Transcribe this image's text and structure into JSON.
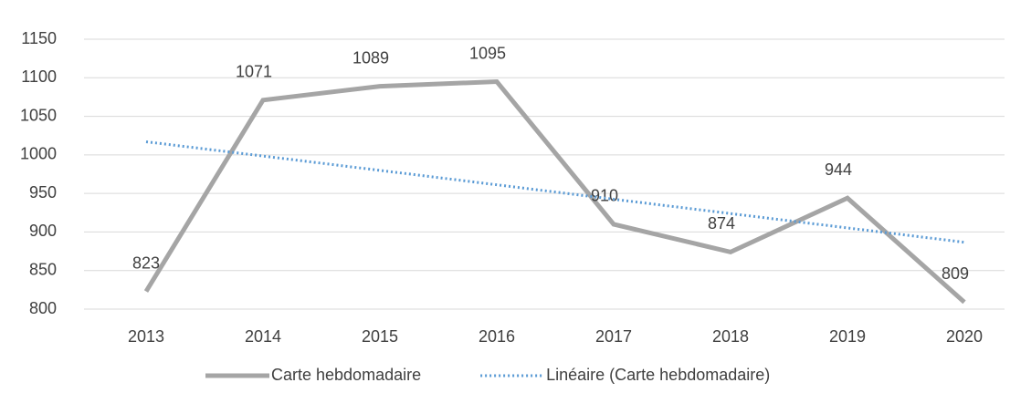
{
  "chart_data": {
    "type": "line",
    "categories": [
      "2013",
      "2014",
      "2015",
      "2016",
      "2017",
      "2018",
      "2019",
      "2020"
    ],
    "series": [
      {
        "name": "Carte hebdomadaire",
        "color": "#a5a5a5",
        "style": "solid",
        "labels": true,
        "values": [
          823,
          1071,
          1089,
          1095,
          910,
          874,
          944,
          809
        ]
      },
      {
        "name": "Linéaire (Carte hebdomadaire)",
        "color": "#5b9bd5",
        "style": "dotted",
        "labels": false,
        "values": [
          1017,
          998.5,
          979.9,
          961.2,
          942.5,
          923.9,
          905.3,
          886.7
        ]
      }
    ],
    "ylim": [
      800,
      1150
    ],
    "yticks": [
      800,
      850,
      900,
      950,
      1000,
      1050,
      1100,
      1150
    ],
    "grid": true,
    "legend": "bottom"
  }
}
